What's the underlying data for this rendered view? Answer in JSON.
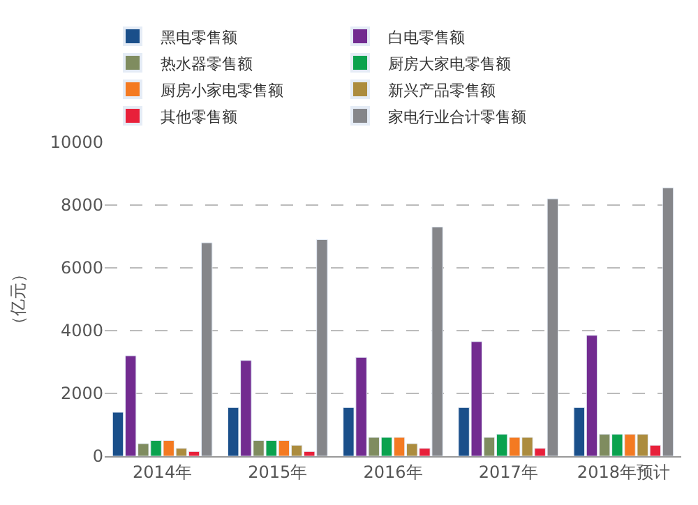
{
  "chart_data": {
    "type": "bar",
    "ylabel": "（亿元）",
    "categories": [
      "2014年",
      "2015年",
      "2016年",
      "2017年",
      "2018年预计"
    ],
    "series": [
      {
        "name": "黑电零售额",
        "color": "#1a4f8a",
        "values": [
          1400,
          1550,
          1550,
          1550,
          1550
        ]
      },
      {
        "name": "白电零售额",
        "color": "#722b90",
        "values": [
          3200,
          3050,
          3150,
          3650,
          3850
        ]
      },
      {
        "name": "热水器零售额",
        "color": "#7f8c5f",
        "values": [
          400,
          500,
          600,
          600,
          700
        ]
      },
      {
        "name": "厨房大家电零售额",
        "color": "#0aa24e",
        "values": [
          500,
          500,
          600,
          700,
          700
        ]
      },
      {
        "name": "厨房小家电零售额",
        "color": "#f47a22",
        "values": [
          500,
          500,
          600,
          600,
          700
        ]
      },
      {
        "name": "新兴产品零售额",
        "color": "#ac8c3e",
        "values": [
          250,
          350,
          400,
          600,
          700
        ]
      },
      {
        "name": "其他零售额",
        "color": "#e8203a",
        "values": [
          150,
          150,
          250,
          250,
          350
        ]
      },
      {
        "name": "家电行业合计零售额",
        "color": "#85868a",
        "values": [
          6800,
          6900,
          7300,
          8200,
          8550
        ]
      }
    ],
    "ylim": [
      0,
      10000
    ],
    "yticks": [
      0,
      2000,
      4000,
      6000,
      8000,
      10000
    ],
    "grid": "y",
    "legend": "top"
  }
}
